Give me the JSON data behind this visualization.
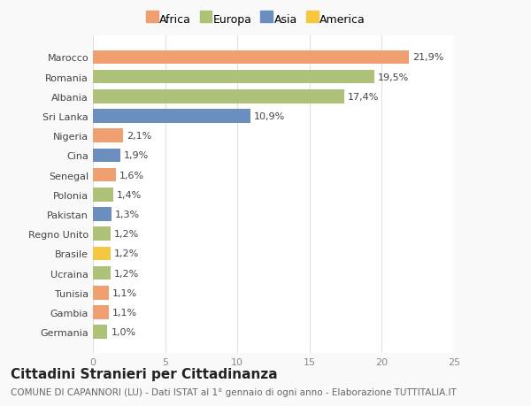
{
  "countries": [
    "Germania",
    "Gambia",
    "Tunisia",
    "Ucraina",
    "Brasile",
    "Regno Unito",
    "Pakistan",
    "Polonia",
    "Senegal",
    "Cina",
    "Nigeria",
    "Sri Lanka",
    "Albania",
    "Romania",
    "Marocco"
  ],
  "values": [
    1.0,
    1.1,
    1.1,
    1.2,
    1.2,
    1.2,
    1.3,
    1.4,
    1.6,
    1.9,
    2.1,
    10.9,
    17.4,
    19.5,
    21.9
  ],
  "labels": [
    "1,0%",
    "1,1%",
    "1,1%",
    "1,2%",
    "1,2%",
    "1,2%",
    "1,3%",
    "1,4%",
    "1,6%",
    "1,9%",
    "2,1%",
    "10,9%",
    "17,4%",
    "19,5%",
    "21,9%"
  ],
  "colors": [
    "#adc178",
    "#f0a070",
    "#f0a070",
    "#adc178",
    "#f5c842",
    "#adc178",
    "#6b8ebf",
    "#adc178",
    "#f0a070",
    "#6b8ebf",
    "#f0a070",
    "#6b8ebf",
    "#adc178",
    "#adc178",
    "#f0a070"
  ],
  "legend_labels": [
    "Africa",
    "Europa",
    "Asia",
    "America"
  ],
  "legend_colors": [
    "#f0a070",
    "#adc178",
    "#6b8ebf",
    "#f5c842"
  ],
  "title": "Cittadini Stranieri per Cittadinanza",
  "subtitle": "COMUNE DI CAPANNORI (LU) - Dati ISTAT al 1° gennaio di ogni anno - Elaborazione TUTTITALIA.IT",
  "xlim": [
    0,
    25
  ],
  "xticks": [
    0,
    5,
    10,
    15,
    20,
    25
  ],
  "background_color": "#f9f9f9",
  "bar_background": "#ffffff",
  "grid_color": "#e0e0e0",
  "title_fontsize": 11,
  "subtitle_fontsize": 7.5,
  "label_fontsize": 8,
  "tick_fontsize": 8,
  "legend_fontsize": 9
}
